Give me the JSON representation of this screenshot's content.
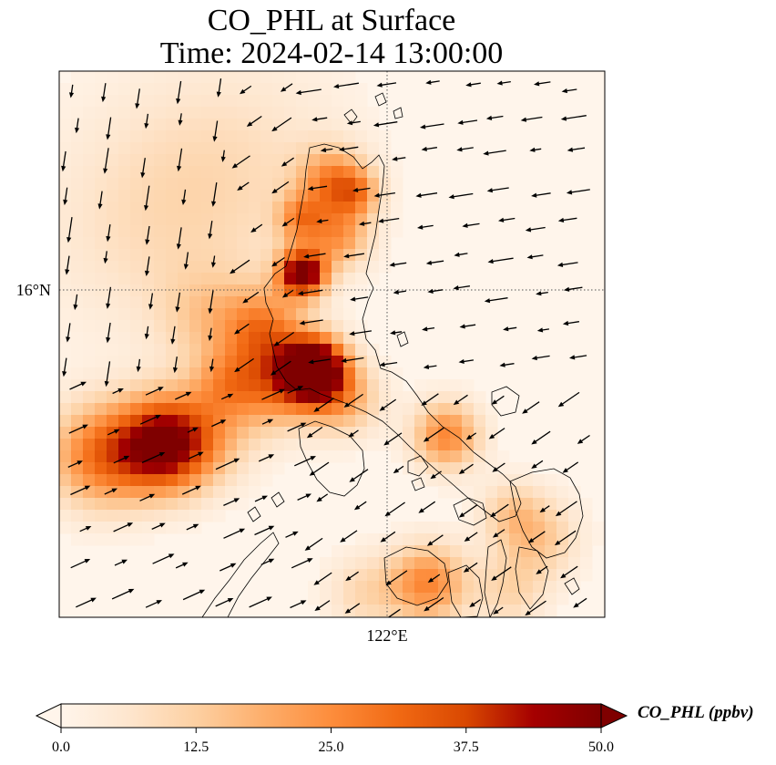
{
  "title": {
    "line1": "CO_PHL at Surface",
    "line2": "Time: 2024-02-14 13:00:00"
  },
  "axes": {
    "lat_tick": "16°N",
    "lon_tick": "122°E",
    "gridlines": "dotted"
  },
  "colorbar": {
    "label": "CO_PHL (ppbv)",
    "ticks": [
      "0.0",
      "12.5",
      "25.0",
      "37.5",
      "50.0"
    ],
    "min": 0,
    "max": 50,
    "extend": "both",
    "colormap": [
      "#fff5eb",
      "#fee6ce",
      "#fdd0a2",
      "#fdae6b",
      "#fd8d3c",
      "#f16913",
      "#d94801",
      "#a50000",
      "#7f0000"
    ]
  },
  "chart_data": {
    "type": "heatmap",
    "variable": "CO_PHL",
    "units": "ppbv",
    "level": "Surface",
    "time": "2024-02-14 13:00:00",
    "value_range": [
      0,
      50
    ],
    "overlays": [
      "coastlines",
      "wind vectors"
    ]
  }
}
